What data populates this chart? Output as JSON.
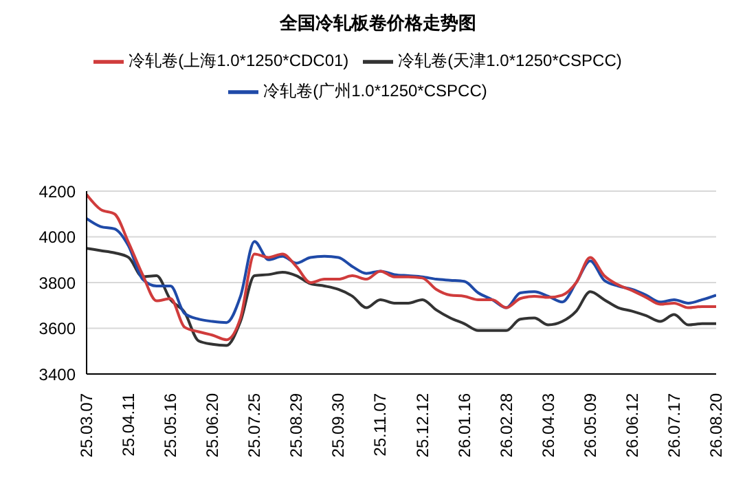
{
  "chart_data": {
    "type": "line",
    "title": "全国冷轧板卷价格走势图",
    "categories": [
      "25.03.07",
      null,
      null,
      "25.04.11",
      null,
      null,
      "25.05.16",
      null,
      null,
      "25.06.20",
      null,
      null,
      "25.07.25",
      null,
      null,
      "25.08.29",
      null,
      null,
      "25.09.30",
      null,
      null,
      "25.11.07",
      null,
      null,
      "25.12.12",
      null,
      null,
      "26.01.16",
      null,
      null,
      "26.02.28",
      null,
      null,
      "26.04.03",
      null,
      null,
      "26.05.09",
      null,
      null,
      "26.06.12",
      null,
      null,
      "26.07.17",
      null,
      null,
      "26.08.20"
    ],
    "series": [
      {
        "name": "冷轧卷(天津1.0*1250*CSPCC)",
        "color": "#333333",
        "values": [
          3950,
          3940,
          3930,
          3910,
          3825,
          3830,
          3725,
          3670,
          3545,
          3530,
          3525,
          3630,
          3830,
          3835,
          3845,
          3830,
          3795,
          3785,
          3770,
          3740,
          3690,
          3725,
          3710,
          3710,
          3725,
          3680,
          3645,
          3620,
          3590,
          3590,
          3590,
          3640,
          3645,
          3615,
          3630,
          3675,
          3760,
          3725,
          3690,
          3675,
          3655,
          3630,
          3660,
          3615,
          3620,
          3620
        ]
      },
      {
        "name": "冷轧卷(广州1.0*1250*CSPCC)",
        "color": "#1f4aa8",
        "values": [
          4080,
          4045,
          4035,
          3960,
          3815,
          3785,
          3785,
          3665,
          3640,
          3630,
          3625,
          3740,
          3980,
          3900,
          3915,
          3885,
          3910,
          3915,
          3910,
          3870,
          3840,
          3850,
          3835,
          3830,
          3825,
          3815,
          3810,
          3805,
          3755,
          3725,
          3690,
          3755,
          3760,
          3740,
          3715,
          3800,
          3895,
          3810,
          3785,
          3770,
          3745,
          3715,
          3725,
          3710,
          3725,
          3745
        ]
      },
      {
        "name": "冷轧卷(上海1.0*1250*CDC01)",
        "color": "#d03c3c",
        "values": [
          4185,
          4120,
          4100,
          3975,
          3835,
          3720,
          3730,
          3605,
          3585,
          3570,
          3550,
          3645,
          3925,
          3910,
          3925,
          3870,
          3800,
          3815,
          3815,
          3830,
          3815,
          3850,
          3825,
          3825,
          3820,
          3770,
          3745,
          3740,
          3725,
          3725,
          3690,
          3730,
          3740,
          3735,
          3745,
          3800,
          3910,
          3830,
          3790,
          3765,
          3735,
          3705,
          3710,
          3690,
          3695,
          3695
        ]
      }
    ],
    "ylim": [
      3400,
      4200
    ],
    "yticks": [
      3400,
      3600,
      3800,
      4000,
      4200
    ],
    "grid": "y",
    "legend": "top",
    "marker": "none",
    "line_style": "solid"
  }
}
